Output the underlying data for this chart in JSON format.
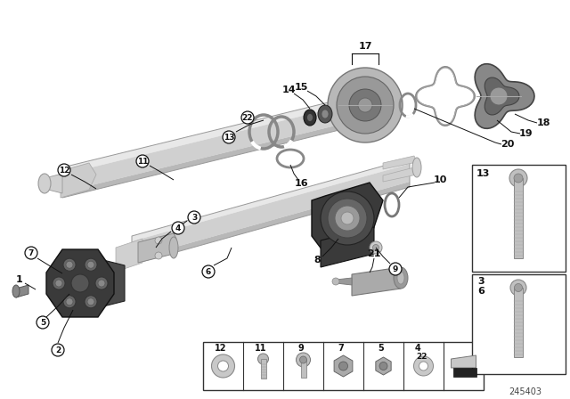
{
  "bg_color": "#ffffff",
  "part_number": "245403",
  "fig_width": 6.4,
  "fig_height": 4.48,
  "dpi": 100,
  "shaft_light": "#e8e8e8",
  "shaft_mid": "#d0d0d0",
  "shaft_dark": "#b8b8b8",
  "shaft_shadow": "#a0a0a0",
  "dark_part": "#3a3a3a",
  "medium_gray": "#888888",
  "light_gray": "#c8c8c8",
  "bolt_color": "#aaaaaa",
  "white": "#ffffff",
  "black": "#111111"
}
